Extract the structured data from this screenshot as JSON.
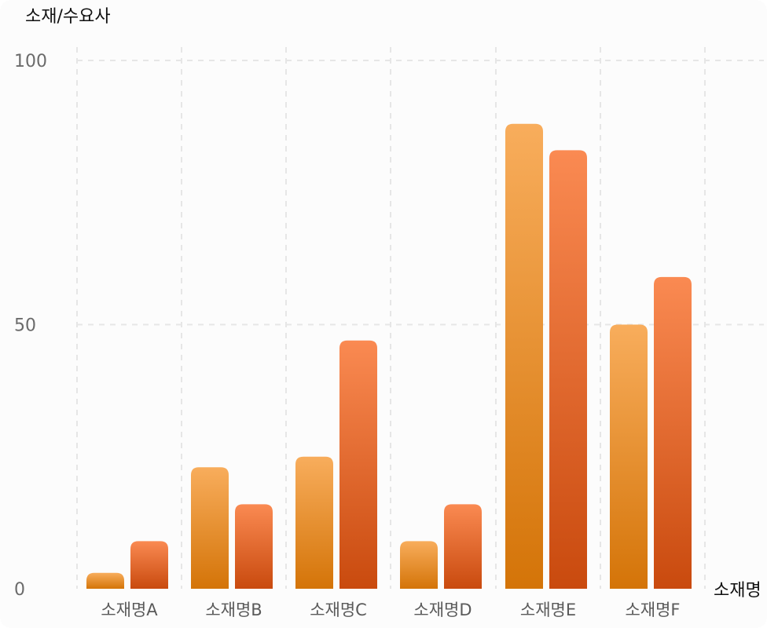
{
  "chart_data": {
    "type": "bar",
    "ylabel": "소재/수요사",
    "xlabel": "소재명",
    "ylim": [
      0,
      100
    ],
    "yticks": [
      0,
      50,
      100
    ],
    "grid": true,
    "categories": [
      "소재명A",
      "소재명B",
      "소재명C",
      "소재명D",
      "소재명E",
      "소재명F"
    ],
    "series": [
      {
        "values": [
          3,
          23,
          25,
          9,
          88,
          50
        ],
        "color_top": "#f8ad5c",
        "color_bottom": "#d47408"
      },
      {
        "values": [
          9,
          16,
          47,
          16,
          83,
          59
        ],
        "color_top": "#fa8a52",
        "color_bottom": "#c94a0e"
      }
    ]
  }
}
